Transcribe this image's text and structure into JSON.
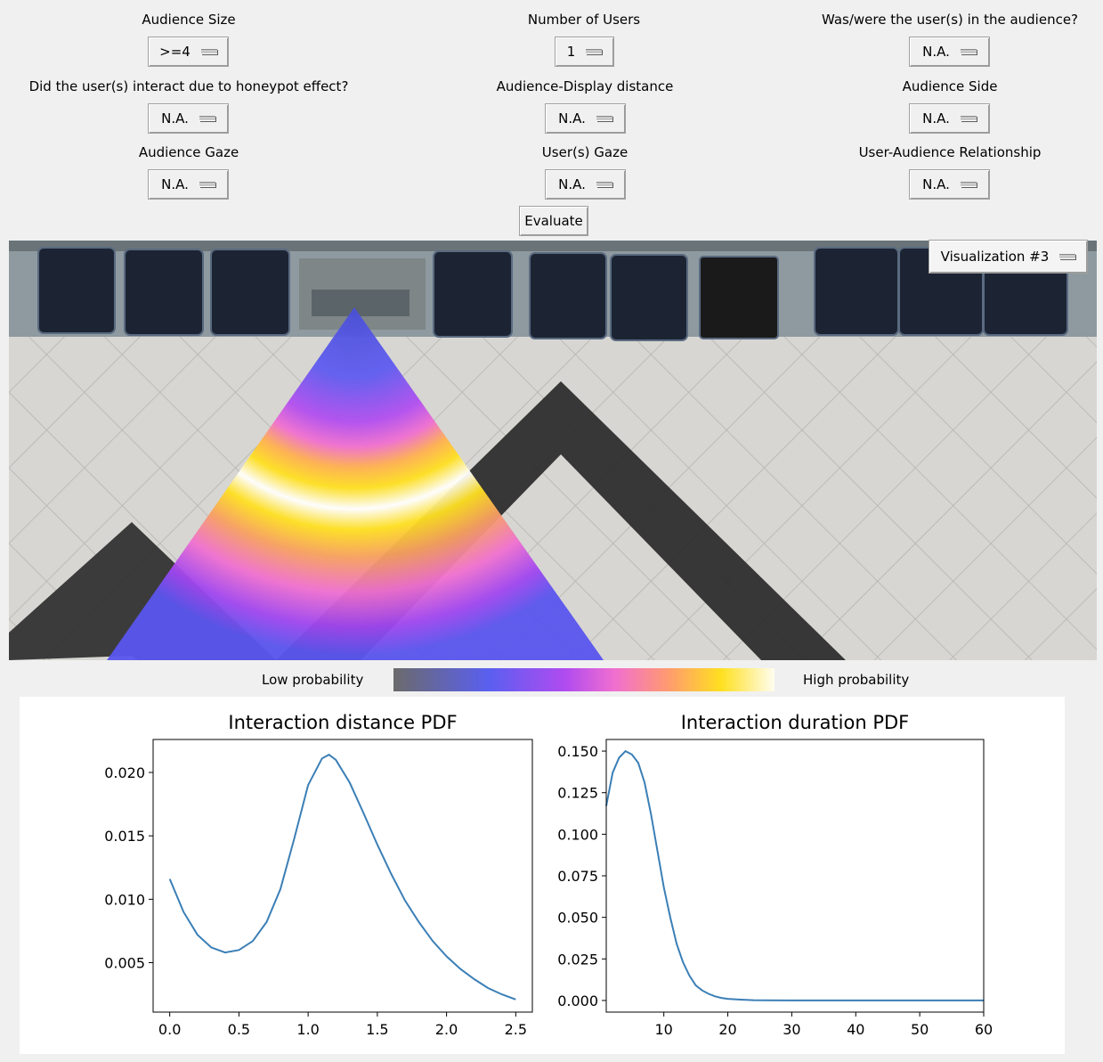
{
  "controls": [
    {
      "label": "Audience Size",
      "value": ">=4"
    },
    {
      "label": "Number of Users",
      "value": "1"
    },
    {
      "label": "Was/were the user(s) in the audience?",
      "value": "N.A."
    },
    {
      "label": "Did the user(s) interact due to honeypot effect?",
      "value": "N.A."
    },
    {
      "label": "Audience-Display distance",
      "value": "N.A."
    },
    {
      "label": "Audience Side",
      "value": "N.A."
    },
    {
      "label": "Audience Gaze",
      "value": "N.A."
    },
    {
      "label": "User(s) Gaze",
      "value": "N.A."
    },
    {
      "label": "User-Audience Relationship",
      "value": "N.A."
    }
  ],
  "evaluate_label": "Evaluate",
  "visualization": {
    "selected": "Visualization #3"
  },
  "colorbar": {
    "low_label": "Low probability",
    "high_label": "High probability"
  },
  "icons": [
    "dropdown-indicator-icon"
  ],
  "chart_data": [
    {
      "type": "line",
      "title": "Interaction distance PDF",
      "xlabel": "",
      "ylabel": "",
      "xlim": [
        -0.12,
        2.62
      ],
      "ylim": [
        0.0011,
        0.0226
      ],
      "xticks": [
        "0.0",
        "0.5",
        "1.0",
        "1.5",
        "2.0",
        "2.5"
      ],
      "yticks": [
        "0.005",
        "0.010",
        "0.015",
        "0.020"
      ],
      "series": [
        {
          "x": [
            0,
            0.1,
            0.2,
            0.3,
            0.4,
            0.5,
            0.6,
            0.7,
            0.8,
            0.9,
            1.0,
            1.1,
            1.15,
            1.2,
            1.3,
            1.4,
            1.5,
            1.6,
            1.7,
            1.8,
            1.9,
            2.0,
            2.1,
            2.2,
            2.3,
            2.4,
            2.5
          ],
          "y": [
            0.0116,
            0.009,
            0.0072,
            0.0062,
            0.0058,
            0.006,
            0.0067,
            0.0082,
            0.0108,
            0.0148,
            0.019,
            0.0211,
            0.0214,
            0.021,
            0.0192,
            0.0168,
            0.0143,
            0.012,
            0.0099,
            0.0082,
            0.0067,
            0.0055,
            0.0045,
            0.0037,
            0.003,
            0.0025,
            0.0021
          ],
          "color": "#3b7fb6"
        }
      ]
    },
    {
      "type": "line",
      "title": "Interaction duration PDF",
      "xlabel": "",
      "ylabel": "",
      "xlim": [
        1,
        60
      ],
      "ylim": [
        -0.007,
        0.157
      ],
      "xticks": [
        "10",
        "20",
        "30",
        "40",
        "50",
        "60"
      ],
      "yticks": [
        "0.000",
        "0.025",
        "0.050",
        "0.075",
        "0.100",
        "0.125",
        "0.150"
      ],
      "series": [
        {
          "x": [
            1,
            2,
            3,
            4,
            5,
            6,
            7,
            8,
            9,
            10,
            11,
            12,
            13,
            14,
            15,
            16,
            17,
            18,
            19,
            20,
            22,
            24,
            26,
            30,
            35,
            40,
            50,
            60
          ],
          "y": [
            0.117,
            0.137,
            0.146,
            0.15,
            0.148,
            0.143,
            0.131,
            0.112,
            0.09,
            0.068,
            0.05,
            0.034,
            0.023,
            0.015,
            0.009,
            0.006,
            0.004,
            0.0025,
            0.0015,
            0.001,
            0.0005,
            0.0002,
            0.0001,
            0,
            0,
            0,
            0,
            0
          ],
          "color": "#3b7fb6"
        }
      ]
    }
  ]
}
